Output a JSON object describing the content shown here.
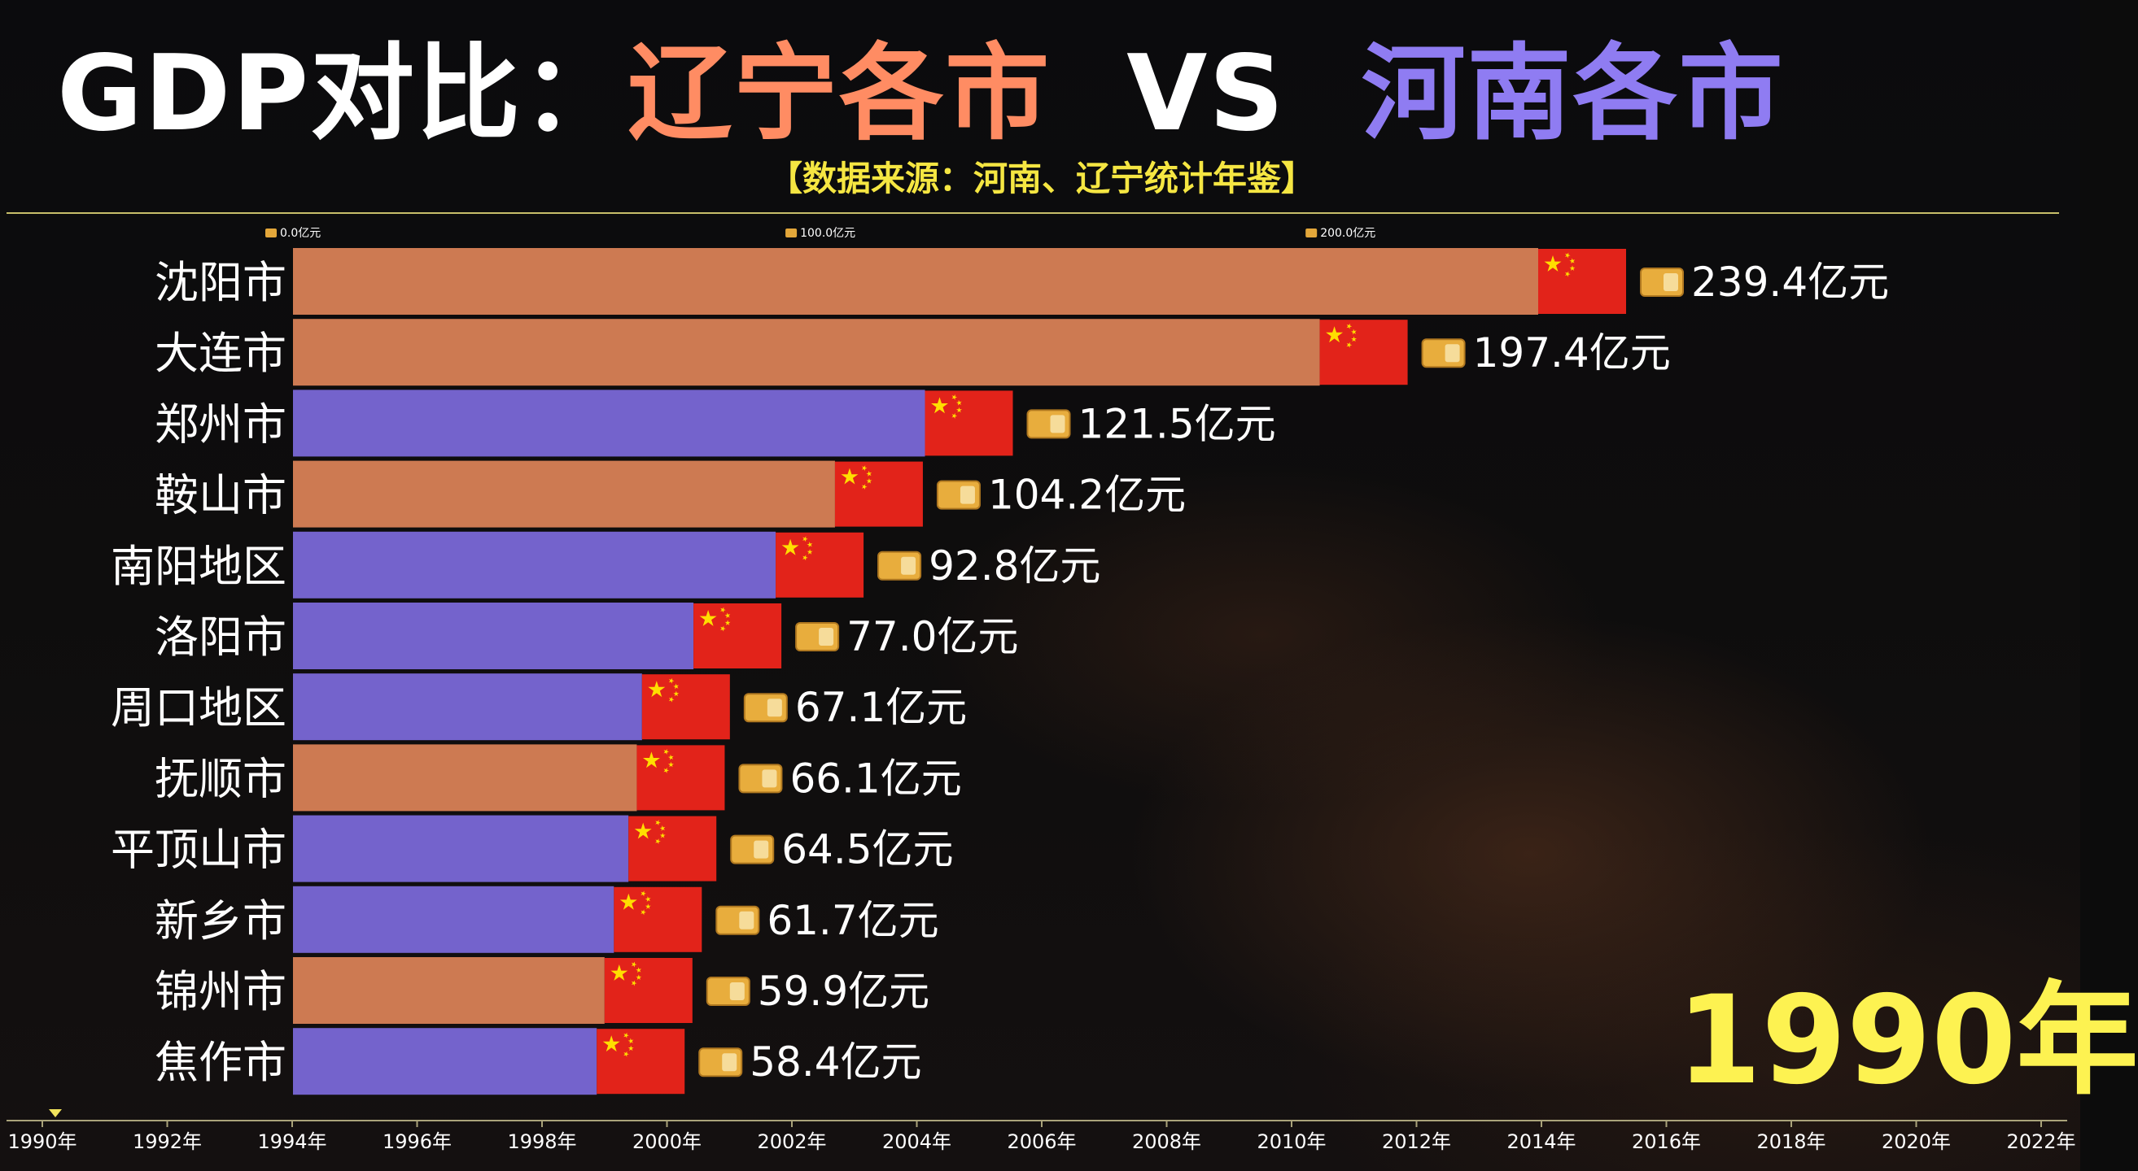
{
  "title": {
    "prefix": "GDP对比：",
    "left": "辽宁各市",
    "vs": "VS",
    "right": "河南各市"
  },
  "subtitle": "【数据来源：河南、辽宁统计年鉴】",
  "year_display": "1990年",
  "colors": {
    "liaoning": "#cd7a52",
    "henan": "#7463cc",
    "flag_red": "#e2231a",
    "flag_star": "#ffde00",
    "year_text": "#fdf251",
    "subtitle": "#f5e642"
  },
  "chart_data": {
    "type": "bar",
    "orientation": "horizontal",
    "unit": "亿元",
    "x_ticks": [
      "0.0亿元",
      "100.0亿元",
      "200.0亿元"
    ],
    "x_tick_values": [
      0,
      100,
      200
    ],
    "xlim": [
      0,
      239.4
    ],
    "categories": [
      "沈阳市",
      "大连市",
      "郑州市",
      "鞍山市",
      "南阳地区",
      "洛阳市",
      "周口地区",
      "抚顺市",
      "平顶山市",
      "新乡市",
      "锦州市",
      "焦作市"
    ],
    "values": [
      239.4,
      197.4,
      121.5,
      104.2,
      92.8,
      77.0,
      67.1,
      66.1,
      64.5,
      61.7,
      59.9,
      58.4
    ],
    "value_labels": [
      "239.4亿元",
      "197.4亿元",
      "121.5亿元",
      "104.2亿元",
      "92.8亿元",
      "77.0亿元",
      "67.1亿元",
      "66.1亿元",
      "64.5亿元",
      "61.7亿元",
      "59.9亿元",
      "58.4亿元"
    ],
    "province": [
      "liaoning",
      "liaoning",
      "henan",
      "liaoning",
      "henan",
      "henan",
      "henan",
      "liaoning",
      "henan",
      "henan",
      "liaoning",
      "henan"
    ],
    "timeline": {
      "labels": [
        "1990年",
        "1992年",
        "1994年",
        "1996年",
        "1998年",
        "2000年",
        "2002年",
        "2004年",
        "2006年",
        "2008年",
        "2010年",
        "2012年",
        "2014年",
        "2016年",
        "2018年",
        "2020年",
        "2022年"
      ],
      "current": "1990年"
    },
    "grid": false,
    "legend": "none"
  }
}
